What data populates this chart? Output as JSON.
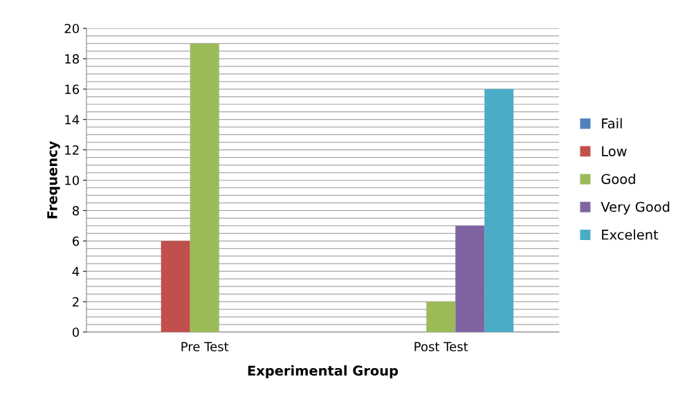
{
  "chart_data": {
    "type": "bar",
    "xlabel": "Experimental Group",
    "ylabel": "Frequency",
    "categories": [
      "Pre Test",
      "Post Test"
    ],
    "series": [
      {
        "name": "Fail",
        "color": "#4f81bd",
        "values": [
          0,
          0
        ]
      },
      {
        "name": "Low",
        "color": "#c0504d",
        "values": [
          6,
          0
        ]
      },
      {
        "name": "Good",
        "color": "#9bbb59",
        "values": [
          19,
          2
        ]
      },
      {
        "name": "Very Good",
        "color": "#8064a2",
        "values": [
          0,
          7
        ]
      },
      {
        "name": "Excelent",
        "color": "#4bacc6",
        "values": [
          0,
          16
        ]
      }
    ],
    "ylim": [
      0,
      20
    ],
    "yticks": [
      0,
      2,
      4,
      6,
      8,
      10,
      12,
      14,
      16,
      18,
      20
    ],
    "grid": "y",
    "legend": "right"
  }
}
